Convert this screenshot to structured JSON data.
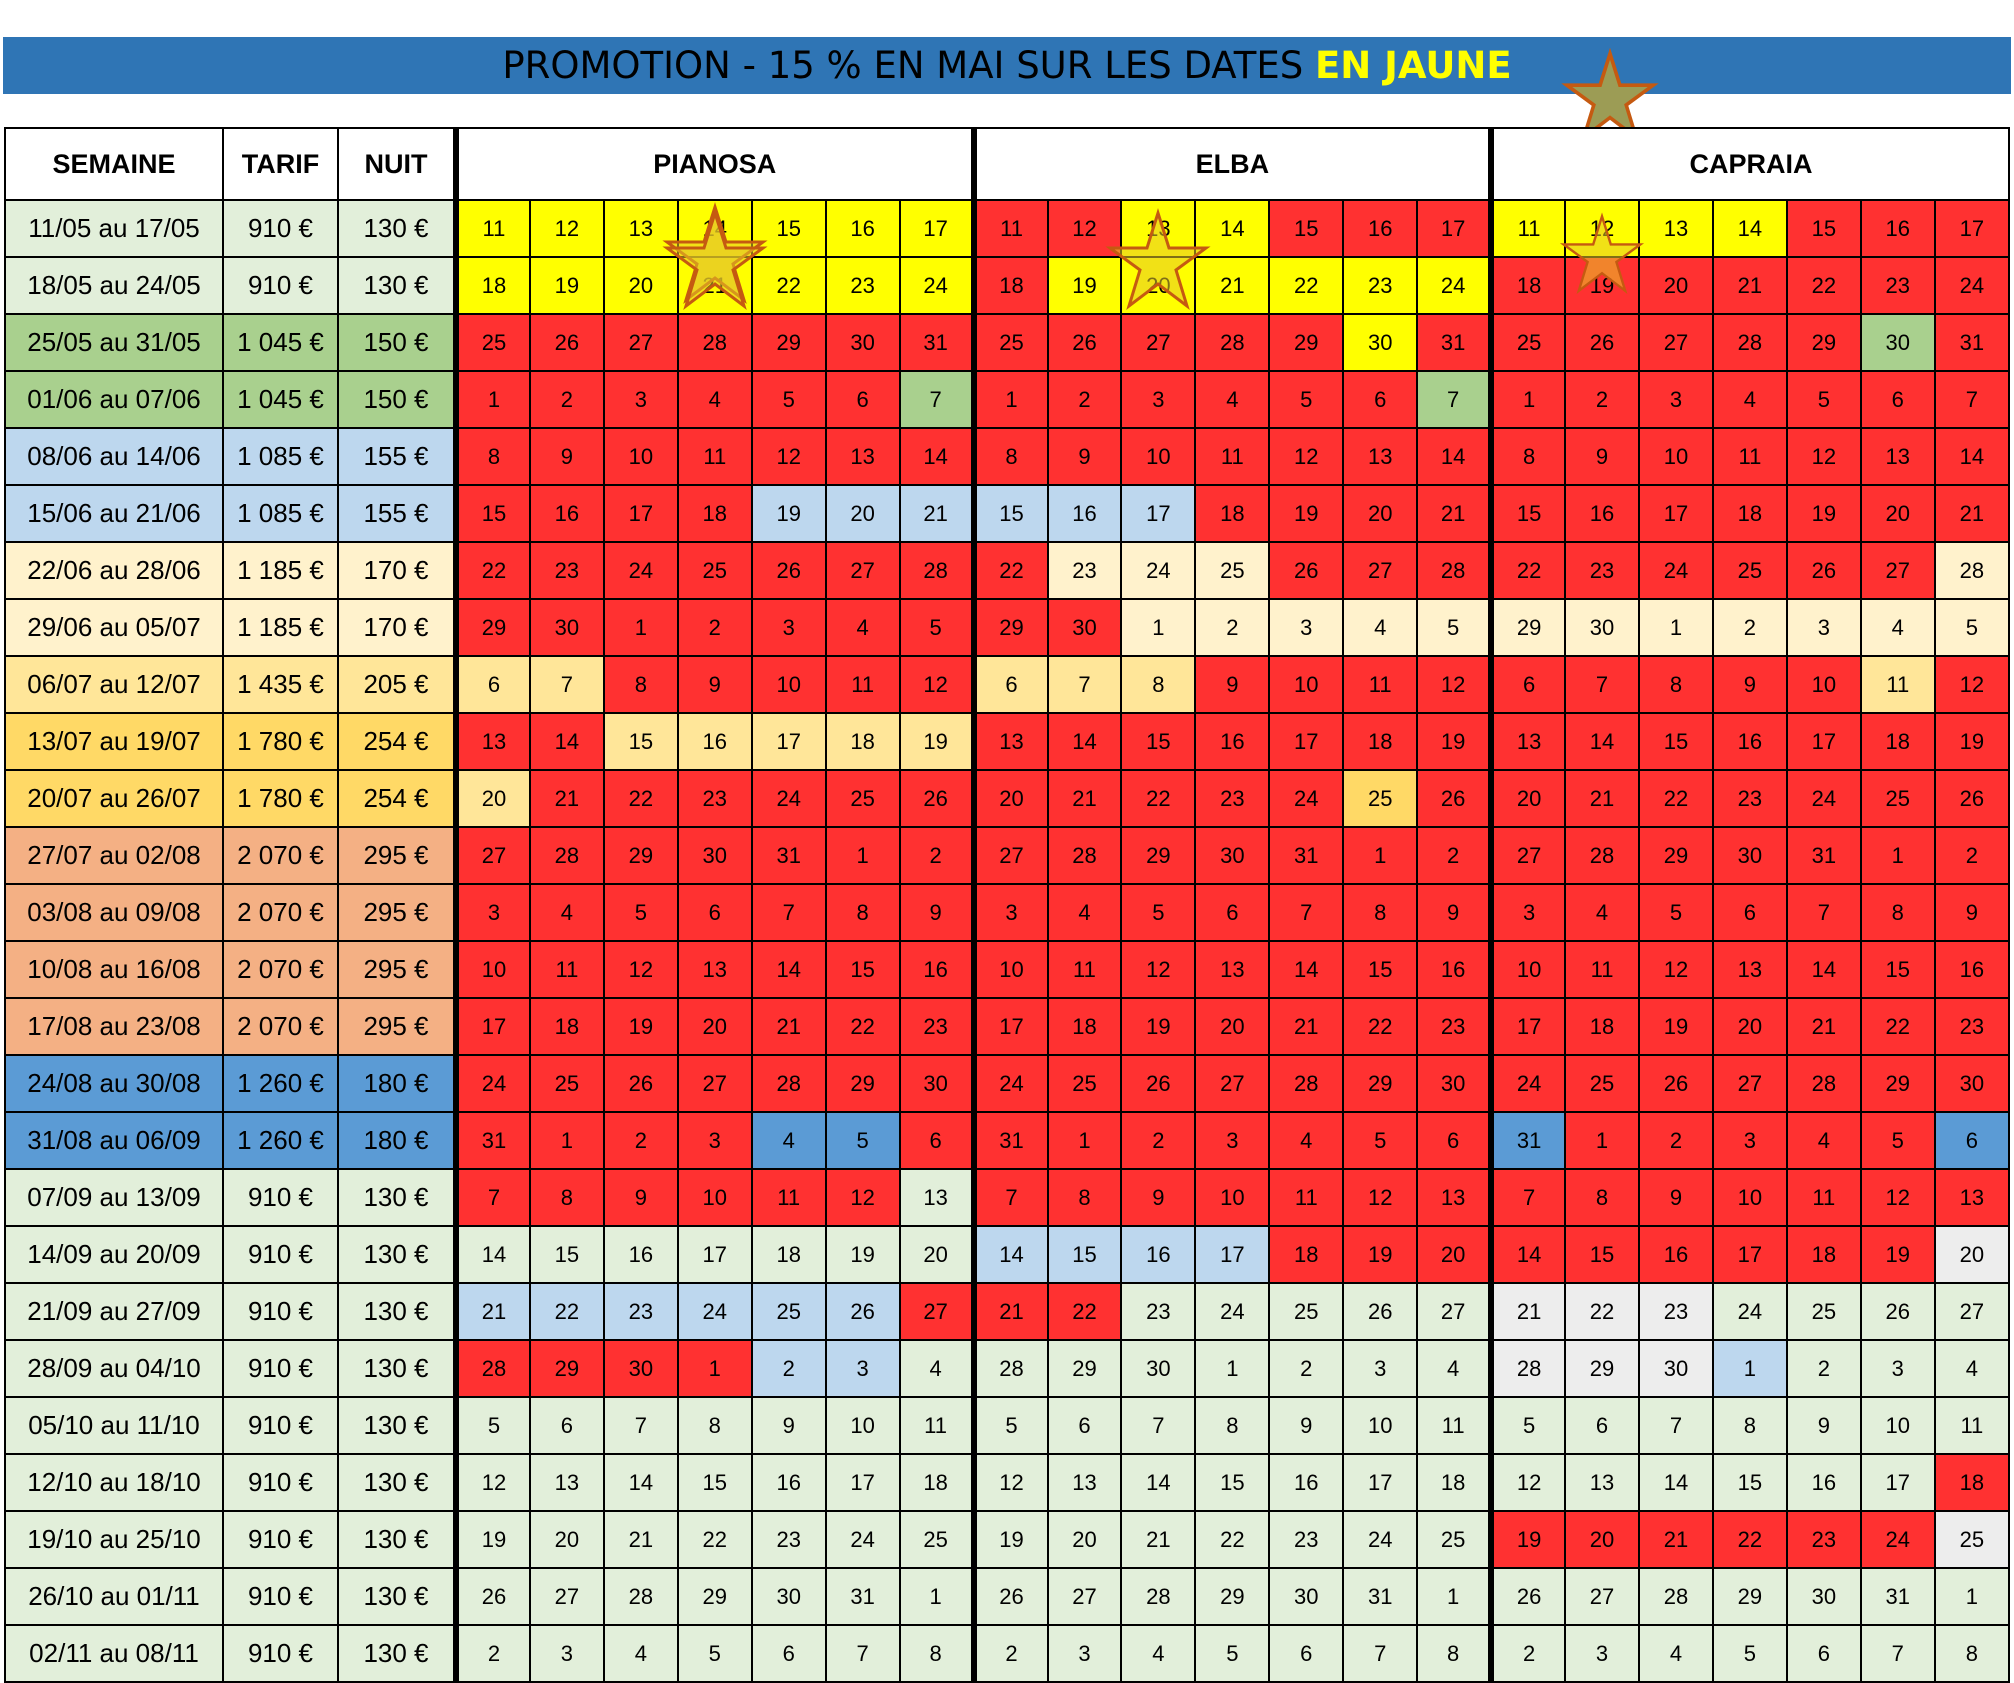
{
  "banner": {
    "text_main": "PROMOTION - 15 % EN MAI SUR LES DATES",
    "text_highlight": "EN JAUNE"
  },
  "colors": {
    "r": "#ff3131",
    "y": "#ffff00",
    "g": "#a9d08e",
    "l": "#bdd7ee",
    "c": "#fff2cc",
    "p": "#ffe699",
    "o": "#ffd966",
    "s": "#f4b084",
    "b": "#5b9bd5",
    "m": "#e2efda",
    "w": "#ededed",
    "banner": "#2f75b5",
    "star_fill": "#9c9c55",
    "star_stroke": "#c55a11"
  },
  "table": {
    "headers": [
      "SEMAINE",
      "TARIF",
      "NUIT"
    ],
    "apartments": [
      "PIANOSA",
      "ELBA",
      "CAPRAIA"
    ],
    "rows": [
      {
        "week": "11/05 au 17/05",
        "rate": "910 €",
        "night": "130 €",
        "tone": "m",
        "days": [
          "11",
          "12",
          "13",
          "14",
          "15",
          "16",
          "17"
        ],
        "cells": [
          "yyyyyyy",
          "rryyrrr",
          "yyyyrrr"
        ]
      },
      {
        "week": "18/05 au 24/05",
        "rate": "910 €",
        "night": "130 €",
        "tone": "m",
        "days": [
          "18",
          "19",
          "20",
          "21",
          "22",
          "23",
          "24"
        ],
        "cells": [
          "yyyyyyy",
          "ryyyyyy",
          "rrrrrrr"
        ]
      },
      {
        "week": "25/05 au 31/05",
        "rate": "1 045 €",
        "night": "150 €",
        "tone": "g",
        "days": [
          "25",
          "26",
          "27",
          "28",
          "29",
          "30",
          "31"
        ],
        "cells": [
          "rrrrrrr",
          "rrrrryr",
          "rrrrrgr"
        ]
      },
      {
        "week": "01/06 au 07/06",
        "rate": "1 045 €",
        "night": "150 €",
        "tone": "g",
        "days": [
          "1",
          "2",
          "3",
          "4",
          "5",
          "6",
          "7"
        ],
        "cells": [
          "rrrrrrg",
          "rrrrrrg",
          "rrrrrrr"
        ]
      },
      {
        "week": "08/06 au 14/06",
        "rate": "1 085 €",
        "night": "155 €",
        "tone": "l",
        "days": [
          "8",
          "9",
          "10",
          "11",
          "12",
          "13",
          "14"
        ],
        "cells": [
          "rrrrrrr",
          "rrrrrrr",
          "rrrrrrr"
        ]
      },
      {
        "week": "15/06 au 21/06",
        "rate": "1 085 €",
        "night": "155 €",
        "tone": "l",
        "days": [
          "15",
          "16",
          "17",
          "18",
          "19",
          "20",
          "21"
        ],
        "cells": [
          "rrrrlll",
          "lllrrrr",
          "rrrrrrr"
        ]
      },
      {
        "week": "22/06 au 28/06",
        "rate": "1 185 €",
        "night": "170 €",
        "tone": "c",
        "days": [
          "22",
          "23",
          "24",
          "25",
          "26",
          "27",
          "28"
        ],
        "cells": [
          "rrrrrrr",
          "rcccrrr",
          "rrrrrrc"
        ]
      },
      {
        "week": "29/06 au 05/07",
        "rate": "1 185 €",
        "night": "170 €",
        "tone": "c",
        "days": [
          "29",
          "30",
          "1",
          "2",
          "3",
          "4",
          "5"
        ],
        "cells": [
          "rrrrrrr",
          "rrccccc",
          "ccccccc"
        ]
      },
      {
        "week": "06/07 au 12/07",
        "rate": "1 435 €",
        "night": "205 €",
        "tone": "p",
        "days": [
          "6",
          "7",
          "8",
          "9",
          "10",
          "11",
          "12"
        ],
        "cells": [
          "pprrrrr",
          "ppprrrr",
          "rrrrrpr"
        ]
      },
      {
        "week": "13/07 au 19/07",
        "rate": "1 780 €",
        "night": "254 €",
        "tone": "o",
        "days": [
          "13",
          "14",
          "15",
          "16",
          "17",
          "18",
          "19"
        ],
        "cells": [
          "rrppppp",
          "rrrrrrr",
          "rrrrrrr"
        ]
      },
      {
        "week": "20/07 au 26/07",
        "rate": "1 780 €",
        "night": "254 €",
        "tone": "o",
        "days": [
          "20",
          "21",
          "22",
          "23",
          "24",
          "25",
          "26"
        ],
        "cells": [
          "prrrrrr",
          "rrrrror",
          "rrrrrrr"
        ]
      },
      {
        "week": "27/07 au 02/08",
        "rate": "2 070 €",
        "night": "295 €",
        "tone": "s",
        "days": [
          "27",
          "28",
          "29",
          "30",
          "31",
          "1",
          "2"
        ],
        "cells": [
          "rrrrrrr",
          "rrrrrrr",
          "rrrrrrr"
        ]
      },
      {
        "week": "03/08 au 09/08",
        "rate": "2 070 €",
        "night": "295 €",
        "tone": "s",
        "days": [
          "3",
          "4",
          "5",
          "6",
          "7",
          "8",
          "9"
        ],
        "cells": [
          "rrrrrrr",
          "rrrrrrr",
          "rrrrrrr"
        ]
      },
      {
        "week": "10/08 au 16/08",
        "rate": "2 070 €",
        "night": "295 €",
        "tone": "s",
        "days": [
          "10",
          "11",
          "12",
          "13",
          "14",
          "15",
          "16"
        ],
        "cells": [
          "rrrrrrr",
          "rrrrrrr",
          "rrrrrrr"
        ]
      },
      {
        "week": "17/08 au 23/08",
        "rate": "2 070 €",
        "night": "295 €",
        "tone": "s",
        "days": [
          "17",
          "18",
          "19",
          "20",
          "21",
          "22",
          "23"
        ],
        "cells": [
          "rrrrrrr",
          "rrrrrrr",
          "rrrrrrr"
        ]
      },
      {
        "week": "24/08 au 30/08",
        "rate": "1 260 €",
        "night": "180 €",
        "tone": "b",
        "days": [
          "24",
          "25",
          "26",
          "27",
          "28",
          "29",
          "30"
        ],
        "cells": [
          "rrrrrrr",
          "rrrrrrr",
          "rrrrrrr"
        ]
      },
      {
        "week": "31/08 au 06/09",
        "rate": "1 260 €",
        "night": "180 €",
        "tone": "b",
        "days": [
          "31",
          "1",
          "2",
          "3",
          "4",
          "5",
          "6"
        ],
        "cells": [
          "rrrrbbr",
          "rrrrrrr",
          "brrrrrb"
        ]
      },
      {
        "week": "07/09 au 13/09",
        "rate": "910 €",
        "night": "130 €",
        "tone": "m",
        "days": [
          "7",
          "8",
          "9",
          "10",
          "11",
          "12",
          "13"
        ],
        "cells": [
          "rrrrrrm",
          "rrrrrrr",
          "rrrrrrr"
        ]
      },
      {
        "week": "14/09 au 20/09",
        "rate": "910 €",
        "night": "130 €",
        "tone": "m",
        "days": [
          "14",
          "15",
          "16",
          "17",
          "18",
          "19",
          "20"
        ],
        "cells": [
          "mmmmmmm",
          "llllrrr",
          "rrrrrrw"
        ]
      },
      {
        "week": "21/09 au 27/09",
        "rate": "910 €",
        "night": "130 €",
        "tone": "m",
        "days": [
          "21",
          "22",
          "23",
          "24",
          "25",
          "26",
          "27"
        ],
        "cells": [
          "llllllr",
          "rrmmmmm",
          "wwwmmmm"
        ]
      },
      {
        "week": "28/09 au 04/10",
        "rate": "910 €",
        "night": "130 €",
        "tone": "m",
        "days": [
          "28",
          "29",
          "30",
          "1",
          "2",
          "3",
          "4"
        ],
        "cells": [
          "rrrrllm",
          "mmmmmmm",
          "wwwlmmm"
        ]
      },
      {
        "week": "05/10 au 11/10",
        "rate": "910 €",
        "night": "130 €",
        "tone": "m",
        "days": [
          "5",
          "6",
          "7",
          "8",
          "9",
          "10",
          "11"
        ],
        "cells": [
          "mmmmmmm",
          "mmmmmmm",
          "mmmmmmm"
        ]
      },
      {
        "week": "12/10 au 18/10",
        "rate": "910 €",
        "night": "130 €",
        "tone": "m",
        "days": [
          "12",
          "13",
          "14",
          "15",
          "16",
          "17",
          "18"
        ],
        "cells": [
          "mmmmmmm",
          "mmmmmmm",
          "mmmmmmr"
        ]
      },
      {
        "week": "19/10 au 25/10",
        "rate": "910 €",
        "night": "130 €",
        "tone": "m",
        "days": [
          "19",
          "20",
          "21",
          "22",
          "23",
          "24",
          "25"
        ],
        "cells": [
          "mmmmmmm",
          "mmmmmmm",
          "rrrrrrw"
        ]
      },
      {
        "week": "26/10 au 01/11",
        "rate": "910 €",
        "night": "130 €",
        "tone": "m",
        "days": [
          "26",
          "27",
          "28",
          "29",
          "30",
          "31",
          "1"
        ],
        "cells": [
          "mmmmmmm",
          "mmmmmmm",
          "mmmmmmm"
        ]
      },
      {
        "week": "02/11 au 08/11",
        "rate": "910 €",
        "night": "130 €",
        "tone": "m",
        "days": [
          "2",
          "3",
          "4",
          "5",
          "6",
          "7",
          "8"
        ],
        "cells": [
          "mmmmmmm",
          "mmmmmmm",
          "mmmmmmm"
        ]
      }
    ]
  }
}
